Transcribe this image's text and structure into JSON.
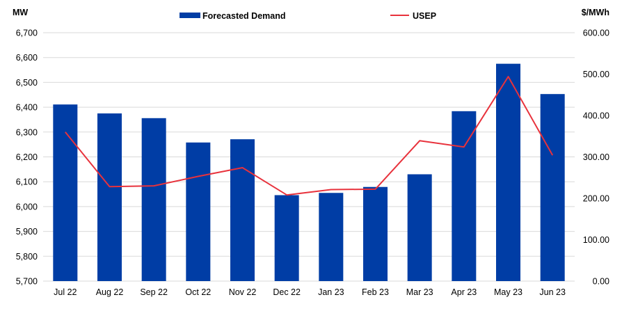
{
  "chart_data": {
    "type": "bar+line",
    "categories": [
      "Jul 22",
      "Aug 22",
      "Sep 22",
      "Oct 22",
      "Nov 22",
      "Dec 22",
      "Jan 23",
      "Feb 23",
      "Mar 23",
      "Apr 23",
      "May 23",
      "Jun 23"
    ],
    "series": [
      {
        "name": "Forecasted Demand",
        "type": "bar",
        "axis": "left",
        "color": "#003DA5",
        "values": [
          6411,
          6375,
          6356,
          6258,
          6271,
          6046,
          6055,
          6079,
          6130,
          6384,
          6575,
          6453
        ]
      },
      {
        "name": "USEP",
        "type": "line",
        "axis": "right",
        "color": "#E8323C",
        "values": [
          360,
          228,
          230,
          253,
          274,
          208,
          221,
          222,
          339,
          324,
          494,
          304
        ]
      }
    ],
    "left_axis": {
      "label": "MW",
      "ylim": [
        5700,
        6700
      ],
      "ticks": [
        5700,
        5800,
        5900,
        6000,
        6100,
        6200,
        6300,
        6400,
        6500,
        6600,
        6700
      ],
      "tick_labels": [
        "5,700",
        "5,800",
        "5,900",
        "6,000",
        "6,100",
        "6,200",
        "6,300",
        "6,400",
        "6,500",
        "6,600",
        "6,700"
      ]
    },
    "right_axis": {
      "label": "$/MWh",
      "ylim": [
        0,
        600
      ],
      "ticks": [
        0,
        100,
        200,
        300,
        400,
        500,
        600
      ],
      "tick_labels": [
        "0.00",
        "100.00",
        "200.00",
        "300.00",
        "400.00",
        "500.00",
        "600.00"
      ]
    },
    "grid": true,
    "legend_position": "top"
  }
}
